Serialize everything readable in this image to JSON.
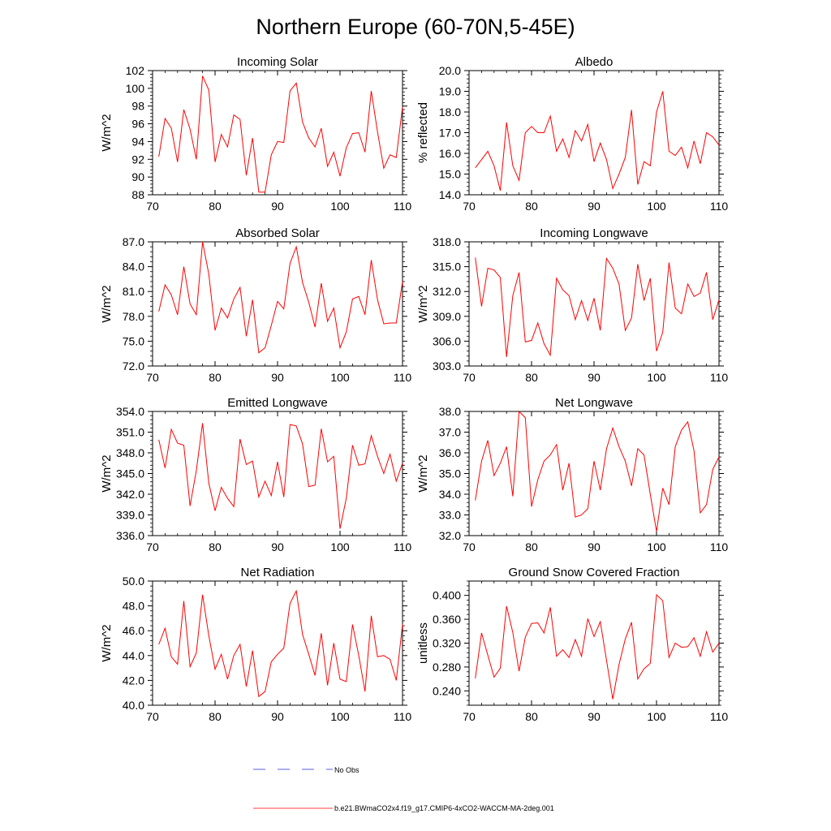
{
  "figure_title": "Northern Europe (60-70N,5-45E)",
  "legend": {
    "obs_label": "No Obs",
    "model_label": "b.e21.BWmaCO2x4.f19_g17.CMIP6-4xCO2-WACCM-MA-2deg.001",
    "obs_color": "#2b2bd6",
    "model_color": "#ff0000"
  },
  "chart_data": [
    {
      "type": "line",
      "title": "Incoming Solar",
      "ylabel": "W/m^2",
      "xlim": [
        70,
        110
      ],
      "ylim": [
        88,
        102
      ],
      "xticks": [
        70,
        80,
        90,
        100,
        110
      ],
      "yticks": [
        "88",
        "90",
        "92",
        "94",
        "96",
        "98",
        "100",
        "102"
      ],
      "yticks_values": [
        88,
        90,
        92,
        94,
        96,
        98,
        100,
        102
      ],
      "series": [
        {
          "name": "b.e21.BWmaCO2x4.f19_g17.CMIP6-4xCO2-WACCM-MA-2deg.001",
          "x": [
            71,
            72,
            73,
            74,
            75,
            76,
            77,
            78,
            79,
            80,
            81,
            82,
            83,
            84,
            85,
            86,
            87,
            88,
            89,
            90,
            91,
            92,
            93,
            94,
            95,
            96,
            97,
            98,
            99,
            100,
            101,
            102,
            103,
            104,
            105,
            106,
            107,
            108,
            109,
            110
          ],
          "values": [
            92.3,
            96.6,
            95.5,
            91.7,
            97.6,
            95.4,
            92.0,
            101.4,
            99.8,
            91.7,
            94.8,
            93.4,
            97.0,
            96.5,
            90.2,
            94.4,
            88.3,
            88.3,
            92.5,
            94.0,
            93.9,
            99.7,
            100.6,
            96.2,
            94.4,
            93.4,
            95.5,
            91.2,
            92.8,
            90.1,
            93.3,
            94.9,
            95.0,
            92.8,
            99.7,
            95.1,
            91.0,
            92.5,
            92.2,
            97.9
          ]
        }
      ]
    },
    {
      "type": "line",
      "title": "Albedo",
      "ylabel": "% reflected",
      "xlim": [
        70,
        110
      ],
      "ylim": [
        14.0,
        20.0
      ],
      "xticks": [
        70,
        80,
        90,
        100,
        110
      ],
      "yticks": [
        "14.0",
        "15.0",
        "16.0",
        "17.0",
        "18.0",
        "19.0",
        "20.0"
      ],
      "yticks_values": [
        14,
        15,
        16,
        17,
        18,
        19,
        20
      ],
      "series": [
        {
          "name": "b.e21.BWmaCO2x4.f19_g17.CMIP6-4xCO2-WACCM-MA-2deg.001",
          "x": [
            71,
            72,
            73,
            74,
            75,
            76,
            77,
            78,
            79,
            80,
            81,
            82,
            83,
            84,
            85,
            86,
            87,
            88,
            89,
            90,
            91,
            92,
            93,
            94,
            95,
            96,
            97,
            98,
            99,
            100,
            101,
            102,
            103,
            104,
            105,
            106,
            107,
            108,
            109,
            110
          ],
          "values": [
            15.3,
            15.7,
            16.1,
            15.4,
            14.2,
            17.5,
            15.4,
            14.7,
            17.0,
            17.3,
            17.0,
            17.0,
            17.8,
            16.1,
            16.7,
            15.8,
            17.1,
            16.6,
            17.4,
            15.6,
            16.5,
            15.7,
            14.3,
            15.0,
            15.8,
            18.1,
            14.5,
            15.6,
            15.4,
            18.0,
            19.0,
            16.1,
            15.9,
            16.3,
            15.3,
            16.6,
            15.5,
            17.0,
            16.8,
            16.4
          ]
        }
      ]
    },
    {
      "type": "line",
      "title": "Absorbed Solar",
      "ylabel": "W/m^2",
      "xlim": [
        70,
        110
      ],
      "ylim": [
        72.0,
        87.0
      ],
      "xticks": [
        70,
        80,
        90,
        100,
        110
      ],
      "yticks": [
        "72.0",
        "75.0",
        "78.0",
        "81.0",
        "84.0",
        "87.0"
      ],
      "yticks_values": [
        72,
        75,
        78,
        81,
        84,
        87
      ],
      "series": [
        {
          "name": "b.e21.BWmaCO2x4.f19_g17.CMIP6-4xCO2-WACCM-MA-2deg.001",
          "x": [
            71,
            72,
            73,
            74,
            75,
            76,
            77,
            78,
            79,
            80,
            81,
            82,
            83,
            84,
            85,
            86,
            87,
            88,
            89,
            90,
            91,
            92,
            93,
            94,
            95,
            96,
            97,
            98,
            99,
            100,
            101,
            102,
            103,
            104,
            105,
            106,
            107,
            108,
            109,
            110
          ],
          "values": [
            78.6,
            81.8,
            80.6,
            78.2,
            84.0,
            79.5,
            78.2,
            87.0,
            83.1,
            76.3,
            79.0,
            77.8,
            80.1,
            81.5,
            75.6,
            80.0,
            73.6,
            74.2,
            76.9,
            79.8,
            78.9,
            84.4,
            86.4,
            82.1,
            79.7,
            76.7,
            82.0,
            77.4,
            79.0,
            74.2,
            76.1,
            80.1,
            80.4,
            78.2,
            84.8,
            80.0,
            77.1,
            77.2,
            77.2,
            82.2
          ]
        }
      ]
    },
    {
      "type": "line",
      "title": "Incoming Longwave",
      "ylabel": "W/m^2",
      "xlim": [
        70,
        110
      ],
      "ylim": [
        303.0,
        318.0
      ],
      "xticks": [
        70,
        80,
        90,
        100,
        110
      ],
      "yticks": [
        "303.0",
        "306.0",
        "309.0",
        "312.0",
        "315.0",
        "318.0"
      ],
      "yticks_values": [
        303,
        306,
        309,
        312,
        315,
        318
      ],
      "series": [
        {
          "name": "b.e21.BWmaCO2x4.f19_g17.CMIP6-4xCO2-WACCM-MA-2deg.001",
          "x": [
            71,
            72,
            73,
            74,
            75,
            76,
            77,
            78,
            79,
            80,
            81,
            82,
            83,
            84,
            85,
            86,
            87,
            88,
            89,
            90,
            91,
            92,
            93,
            94,
            95,
            96,
            97,
            98,
            99,
            100,
            101,
            102,
            103,
            104,
            105,
            106,
            107,
            108,
            109,
            110
          ],
          "values": [
            316.1,
            310.2,
            314.8,
            314.6,
            313.7,
            304.1,
            311.5,
            314.3,
            305.9,
            306.1,
            308.2,
            305.7,
            304.3,
            313.6,
            312.2,
            311.5,
            308.6,
            310.9,
            308.5,
            311.2,
            307.3,
            316.0,
            314.8,
            312.9,
            307.3,
            308.8,
            315.3,
            310.9,
            313.6,
            304.8,
            307.1,
            315.5,
            310.0,
            309.3,
            312.9,
            311.4,
            311.8,
            314.3,
            308.6,
            311.0
          ]
        }
      ]
    },
    {
      "type": "line",
      "title": "Emitted Longwave",
      "ylabel": "W/m^2",
      "xlim": [
        70,
        110
      ],
      "ylim": [
        336.0,
        354.0
      ],
      "xticks": [
        70,
        80,
        90,
        100,
        110
      ],
      "yticks": [
        "336.0",
        "339.0",
        "342.0",
        "345.0",
        "348.0",
        "351.0",
        "354.0"
      ],
      "yticks_values": [
        336,
        339,
        342,
        345,
        348,
        351,
        354
      ],
      "series": [
        {
          "name": "b.e21.BWmaCO2x4.f19_g17.CMIP6-4xCO2-WACCM-MA-2deg.001",
          "x": [
            71,
            72,
            73,
            74,
            75,
            76,
            77,
            78,
            79,
            80,
            81,
            82,
            83,
            84,
            85,
            86,
            87,
            88,
            89,
            90,
            91,
            92,
            93,
            94,
            95,
            96,
            97,
            98,
            99,
            100,
            101,
            102,
            103,
            104,
            105,
            106,
            107,
            108,
            109,
            110
          ],
          "values": [
            349.9,
            345.8,
            351.4,
            349.4,
            349.1,
            340.3,
            345.4,
            352.3,
            343.6,
            339.6,
            343.0,
            341.4,
            340.2,
            350.0,
            346.3,
            346.8,
            341.6,
            343.9,
            341.8,
            346.7,
            341.6,
            352.1,
            351.9,
            349.3,
            343.1,
            343.3,
            351.5,
            346.7,
            347.5,
            337.0,
            341.4,
            349.1,
            346.2,
            346.4,
            350.5,
            347.5,
            345.0,
            347.8,
            343.9,
            346.5
          ]
        }
      ]
    },
    {
      "type": "line",
      "title": "Net Longwave",
      "ylabel": "W/m^2",
      "xlim": [
        70,
        110
      ],
      "ylim": [
        32.0,
        38.0
      ],
      "xticks": [
        70,
        80,
        90,
        100,
        110
      ],
      "yticks": [
        "32.0",
        "33.0",
        "34.0",
        "35.0",
        "36.0",
        "37.0",
        "38.0"
      ],
      "yticks_values": [
        32,
        33,
        34,
        35,
        36,
        37,
        38
      ],
      "series": [
        {
          "name": "b.e21.BWmaCO2x4.f19_g17.CMIP6-4xCO2-WACCM-MA-2deg.001",
          "x": [
            71,
            72,
            73,
            74,
            75,
            76,
            77,
            78,
            79,
            80,
            81,
            82,
            83,
            84,
            85,
            86,
            87,
            88,
            89,
            90,
            91,
            92,
            93,
            94,
            95,
            96,
            97,
            98,
            99,
            100,
            101,
            102,
            103,
            104,
            105,
            106,
            107,
            108,
            109,
            110
          ],
          "values": [
            33.7,
            35.6,
            36.6,
            34.9,
            35.5,
            36.3,
            33.9,
            38.0,
            37.7,
            33.4,
            34.7,
            35.6,
            35.9,
            36.4,
            34.2,
            35.5,
            32.9,
            33.0,
            33.3,
            35.6,
            34.2,
            36.2,
            37.2,
            36.3,
            35.6,
            34.4,
            36.2,
            35.9,
            34.0,
            32.2,
            34.3,
            33.5,
            36.3,
            37.1,
            37.5,
            36.1,
            33.1,
            33.5,
            35.2,
            35.8
          ]
        }
      ]
    },
    {
      "type": "line",
      "title": "Net Radiation",
      "ylabel": "W/m^2",
      "xlim": [
        70,
        110
      ],
      "ylim": [
        40.0,
        50.0
      ],
      "xticks": [
        70,
        80,
        90,
        100,
        110
      ],
      "yticks": [
        "40.0",
        "42.0",
        "44.0",
        "46.0",
        "48.0",
        "50.0"
      ],
      "yticks_values": [
        40,
        42,
        44,
        46,
        48,
        50
      ],
      "series": [
        {
          "name": "b.e21.BWmaCO2x4.f19_g17.CMIP6-4xCO2-WACCM-MA-2deg.001",
          "x": [
            71,
            72,
            73,
            74,
            75,
            76,
            77,
            78,
            79,
            80,
            81,
            82,
            83,
            84,
            85,
            86,
            87,
            88,
            89,
            90,
            91,
            92,
            93,
            94,
            95,
            96,
            97,
            98,
            99,
            100,
            101,
            102,
            103,
            104,
            105,
            106,
            107,
            108,
            109,
            110
          ],
          "values": [
            44.9,
            46.2,
            43.9,
            43.3,
            48.4,
            43.1,
            44.2,
            48.9,
            45.6,
            42.9,
            44.1,
            42.1,
            44.0,
            44.9,
            41.5,
            44.4,
            40.7,
            41.1,
            43.5,
            44.1,
            44.6,
            48.2,
            49.2,
            45.7,
            44.1,
            42.4,
            45.8,
            41.6,
            45.0,
            42.1,
            41.9,
            46.5,
            44.0,
            41.1,
            47.2,
            43.9,
            44.0,
            43.7,
            42.0,
            46.5
          ]
        }
      ]
    },
    {
      "type": "line",
      "title": "Ground Snow Covered Fraction",
      "ylabel": "unitless",
      "xlim": [
        70,
        110
      ],
      "ylim": [
        0.216,
        0.424
      ],
      "xticks": [
        70,
        80,
        90,
        100,
        110
      ],
      "yticks": [
        "0.240",
        "0.280",
        "0.320",
        "0.360",
        "0.400"
      ],
      "yticks_values": [
        0.24,
        0.28,
        0.32,
        0.36,
        0.4
      ],
      "series": [
        {
          "name": "b.e21.BWmaCO2x4.f19_g17.CMIP6-4xCO2-WACCM-MA-2deg.001",
          "x": [
            71,
            72,
            73,
            74,
            75,
            76,
            77,
            78,
            79,
            80,
            81,
            82,
            83,
            84,
            85,
            86,
            87,
            88,
            89,
            90,
            91,
            92,
            93,
            94,
            95,
            96,
            97,
            98,
            99,
            100,
            101,
            102,
            103,
            104,
            105,
            106,
            107,
            108,
            109,
            110
          ],
          "values": [
            0.261,
            0.337,
            0.3,
            0.263,
            0.278,
            0.382,
            0.338,
            0.273,
            0.33,
            0.353,
            0.354,
            0.337,
            0.38,
            0.298,
            0.309,
            0.296,
            0.326,
            0.298,
            0.361,
            0.331,
            0.356,
            0.291,
            0.226,
            0.284,
            0.327,
            0.355,
            0.26,
            0.277,
            0.286,
            0.401,
            0.391,
            0.296,
            0.32,
            0.313,
            0.314,
            0.329,
            0.298,
            0.339,
            0.305,
            0.32
          ]
        }
      ]
    }
  ]
}
